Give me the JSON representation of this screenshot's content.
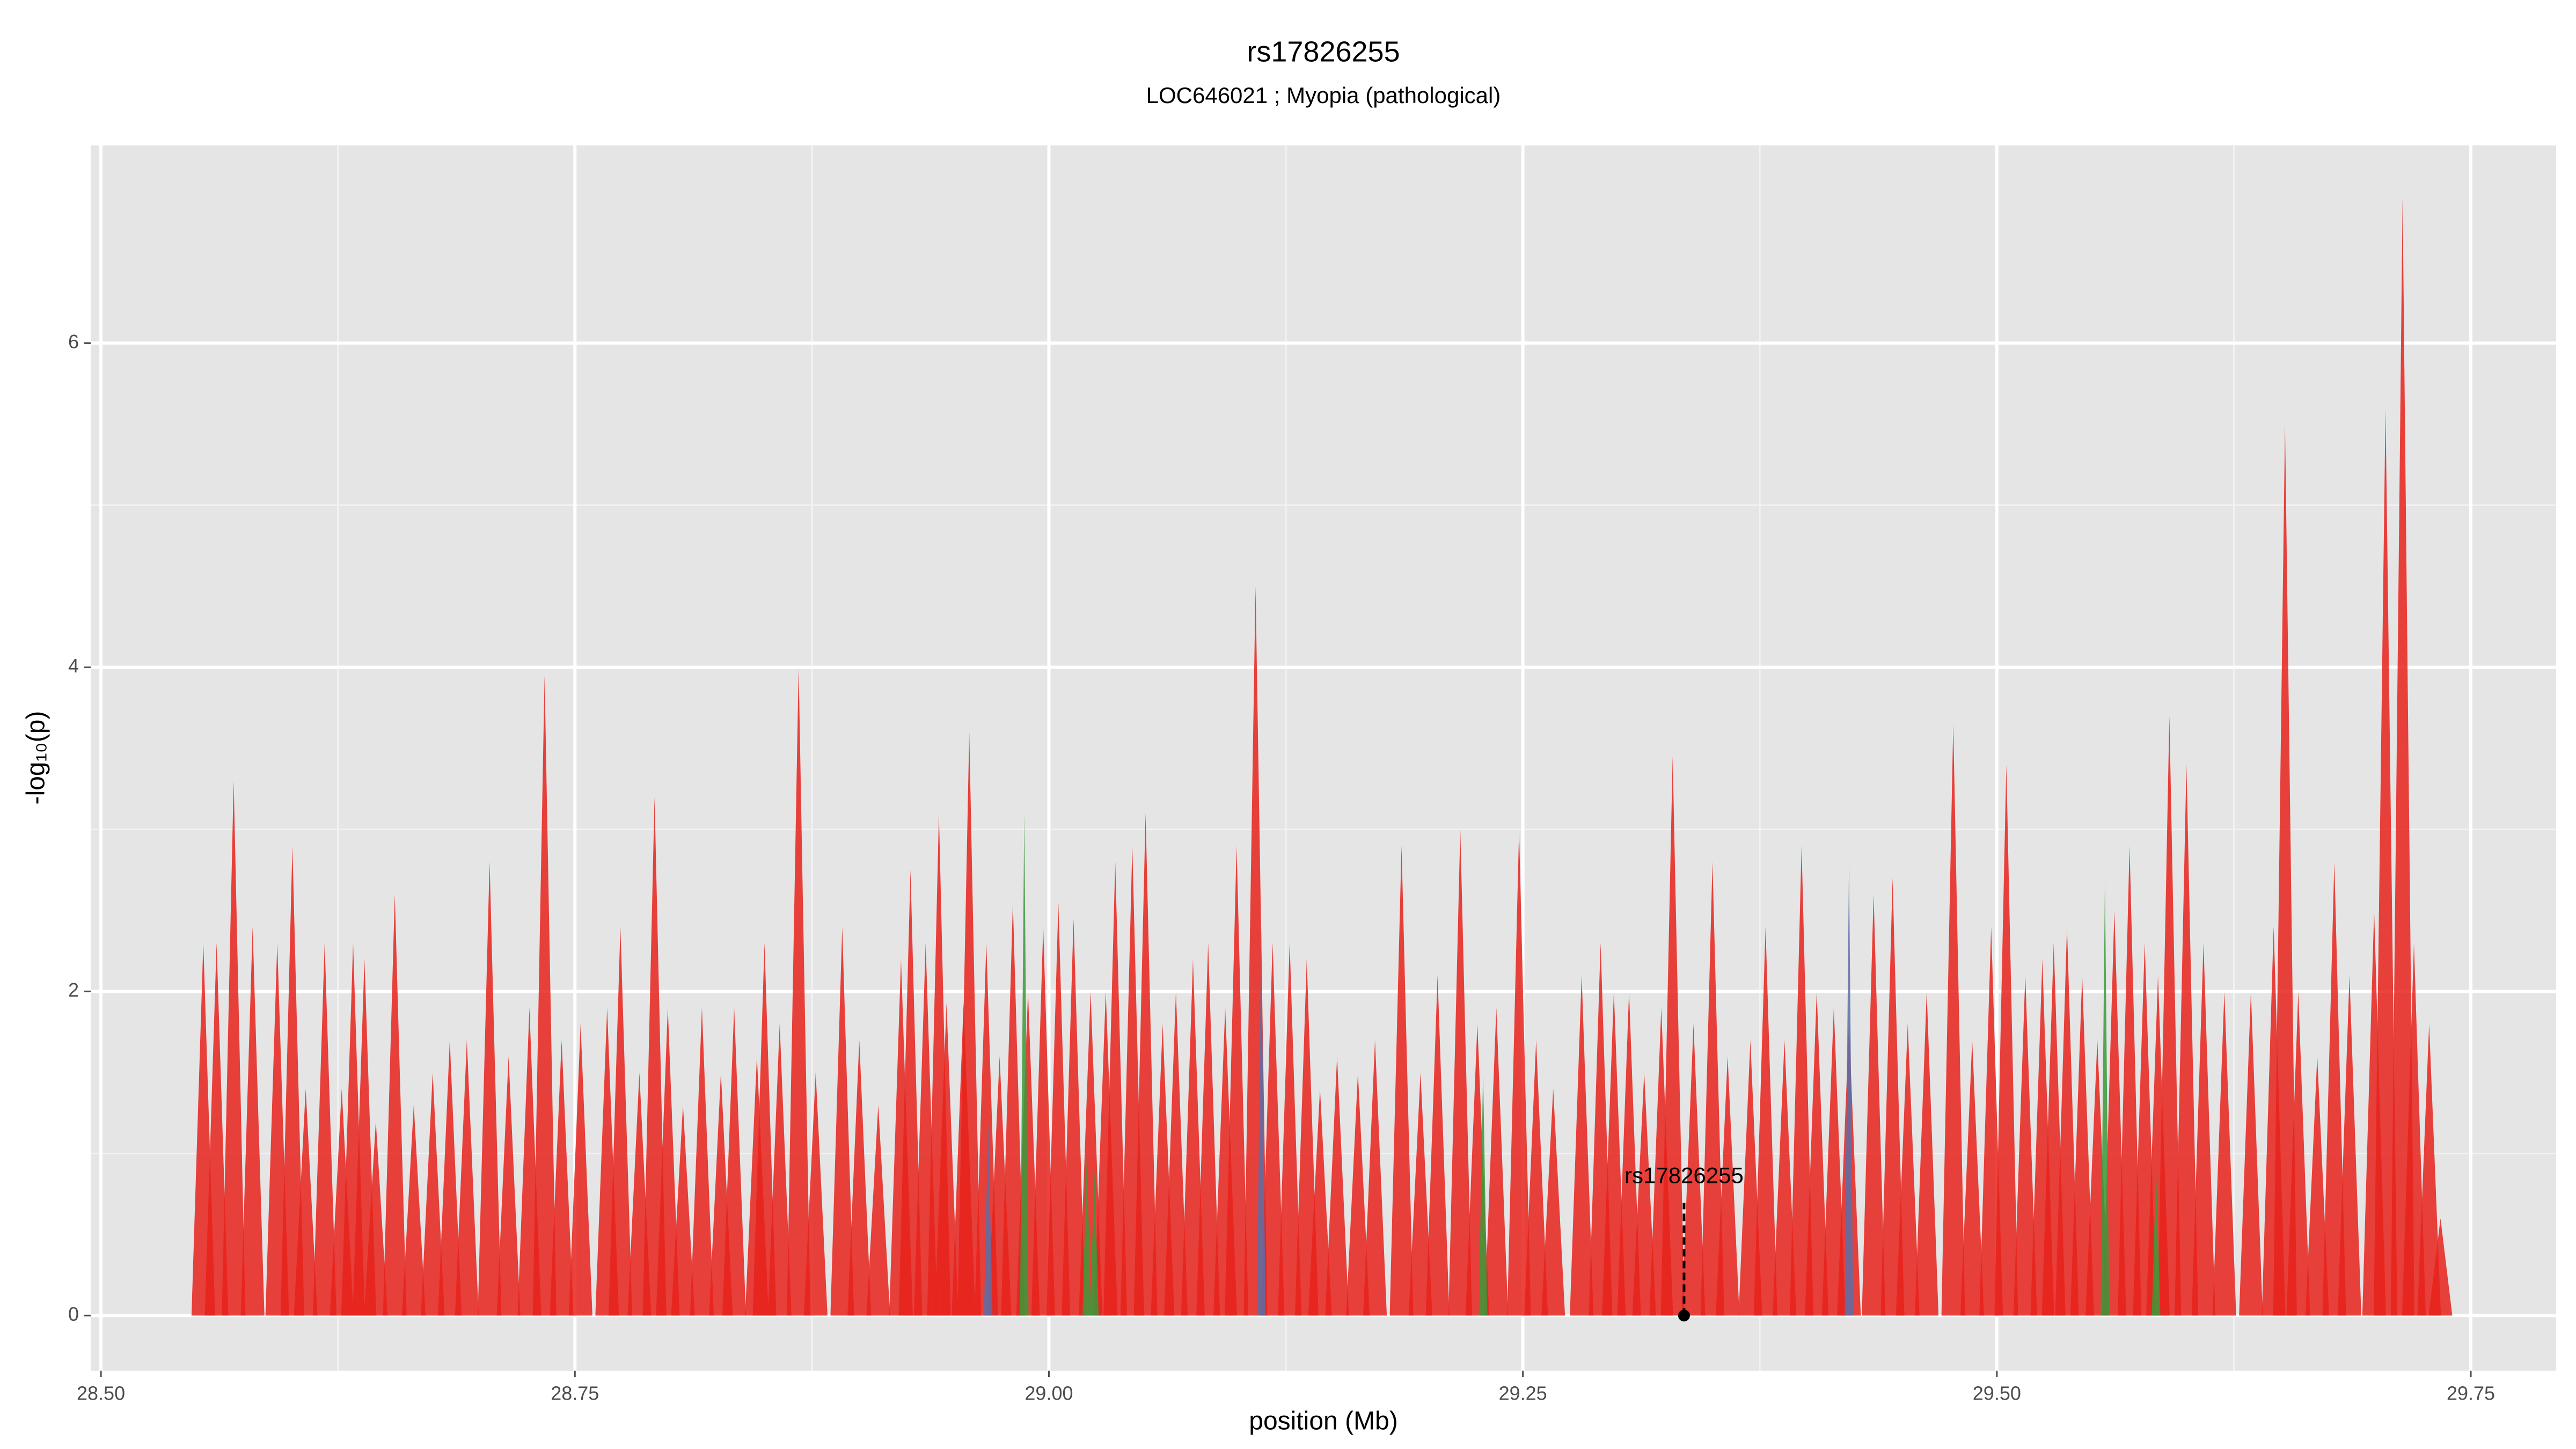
{
  "chart_data": {
    "type": "spike",
    "title": "rs17826255",
    "subtitle": "LOC646021 ; Myopia (pathological)",
    "x_label": "position (Mb)",
    "y_label": "-log₁₀(p)",
    "xlim": [
      28.4946,
      29.795
    ],
    "ylim": [
      -0.34,
      7.22
    ],
    "xticks": [
      {
        "value": 28.5,
        "label": "28.50"
      },
      {
        "value": 28.75,
        "label": "28.75"
      },
      {
        "value": 29.0,
        "label": "29.00"
      },
      {
        "value": 29.25,
        "label": "29.25"
      },
      {
        "value": 29.5,
        "label": "29.50"
      },
      {
        "value": 29.75,
        "label": "29.75"
      }
    ],
    "yticks": [
      0,
      2,
      4,
      6
    ],
    "grid": true,
    "series": [
      {
        "color": "#e8221c",
        "x": [
          28.554,
          28.561,
          28.57,
          28.58,
          28.593,
          28.601,
          28.608,
          28.618,
          28.627,
          28.633,
          28.639,
          28.645,
          28.655,
          28.665,
          28.675,
          28.684,
          28.693,
          28.705,
          28.715,
          28.726,
          28.734,
          28.743,
          28.753,
          28.767,
          28.774,
          28.784,
          28.792,
          28.799,
          28.807,
          28.817,
          28.827,
          28.834,
          28.846,
          28.85,
          28.858,
          28.868,
          28.877,
          28.891,
          28.9,
          28.91,
          28.922,
          28.927,
          28.935,
          28.942,
          28.946,
          28.955,
          28.958,
          28.967,
          28.974,
          28.981,
          28.989,
          28.997,
          29.005,
          29.013,
          29.022,
          29.03,
          29.035,
          29.044,
          29.051,
          29.06,
          29.067,
          29.076,
          29.084,
          29.093,
          29.099,
          29.109,
          29.118,
          29.127,
          29.136,
          29.143,
          29.152,
          29.163,
          29.172,
          29.186,
          29.196,
          29.205,
          29.217,
          29.226,
          29.236,
          29.248,
          29.257,
          29.266,
          29.281,
          29.291,
          29.298,
          29.306,
          29.314,
          29.323,
          29.329,
          29.34,
          29.35,
          29.358,
          29.37,
          29.378,
          29.388,
          29.397,
          29.405,
          29.414,
          29.422,
          29.435,
          29.445,
          29.453,
          29.463,
          29.477,
          29.487,
          29.497,
          29.505,
          29.515,
          29.524,
          29.53,
          29.537,
          29.545,
          29.553,
          29.562,
          29.57,
          29.578,
          29.585,
          29.591,
          29.6,
          29.609,
          29.62,
          29.634,
          29.646,
          29.652,
          29.659,
          29.669,
          29.678,
          29.686,
          29.699,
          29.705,
          29.714,
          29.72,
          29.728,
          29.734
        ],
        "values": [
          2.3,
          2.3,
          3.3,
          2.4,
          2.3,
          2.9,
          1.4,
          2.3,
          1.4,
          2.3,
          2.2,
          1.2,
          2.6,
          1.3,
          1.5,
          1.7,
          1.7,
          2.8,
          1.6,
          1.9,
          3.95,
          1.7,
          1.8,
          1.9,
          2.4,
          1.5,
          3.2,
          1.9,
          1.3,
          1.9,
          1.5,
          1.9,
          1.6,
          2.3,
          1.8,
          4.0,
          1.5,
          2.4,
          1.7,
          1.3,
          2.2,
          2.75,
          2.3,
          3.1,
          1.93,
          1.93,
          3.6,
          2.3,
          1.6,
          2.55,
          2.0,
          2.4,
          2.55,
          2.45,
          2.0,
          2.0,
          2.8,
          2.9,
          3.1,
          1.8,
          2.0,
          2.2,
          2.3,
          1.9,
          2.9,
          4.5,
          2.3,
          2.3,
          2.2,
          1.4,
          1.6,
          1.5,
          1.7,
          2.9,
          1.5,
          2.1,
          3.0,
          1.8,
          1.9,
          3.0,
          1.7,
          1.4,
          2.1,
          2.3,
          2.0,
          2.0,
          1.5,
          1.9,
          3.45,
          1.8,
          2.8,
          1.6,
          1.7,
          2.4,
          1.7,
          2.9,
          2.0,
          1.9,
          1.8,
          2.6,
          2.7,
          1.8,
          2.0,
          3.65,
          1.7,
          2.4,
          3.4,
          2.1,
          2.2,
          2.3,
          2.4,
          2.1,
          1.7,
          2.5,
          2.9,
          2.3,
          2.1,
          3.7,
          3.4,
          2.3,
          2.0,
          2.0,
          2.4,
          5.5,
          2.0,
          1.6,
          2.8,
          2.1,
          2.5,
          5.6,
          6.9,
          2.3,
          1.8,
          0.6
        ]
      },
      {
        "color": "#3a9a3a",
        "x": [
          28.987,
          29.02,
          29.024,
          29.229,
          29.557,
          29.584
        ],
        "values": [
          3.1,
          1.0,
          0.9,
          1.5,
          2.7,
          0.9
        ]
      },
      {
        "color": "#5a6fa8",
        "x": [
          28.968,
          29.112,
          29.422
        ],
        "values": [
          1.2,
          2.4,
          2.8
        ]
      }
    ],
    "annotation": {
      "text": "rs17826255",
      "x": 29.335,
      "y": 0
    }
  }
}
